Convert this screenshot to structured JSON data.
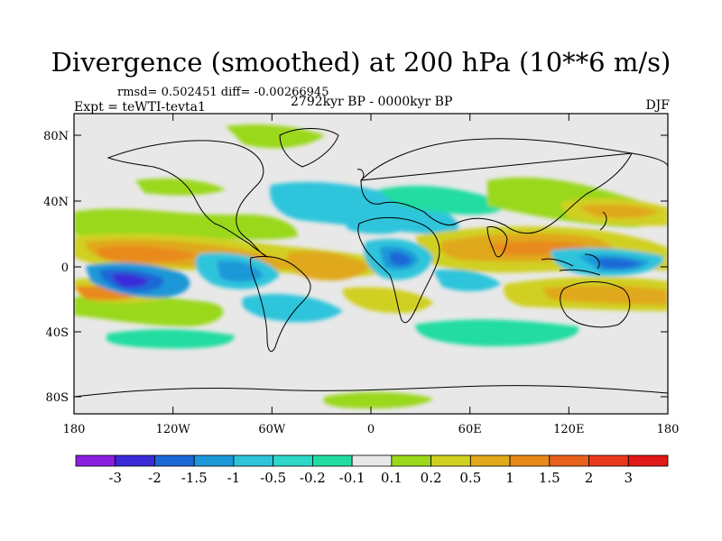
{
  "title": "Divergence (smoothed) at 200 hPa (10**6 m/s)",
  "stats": {
    "rmsd_label": "rmsd=",
    "rmsd_value": "0.502451",
    "diff_label": "diff=",
    "diff_value": "-0.00266945"
  },
  "experiment": "Expt = teWTI-tevta1",
  "period": "2792kyr BP - 0000kyr BP",
  "season": "DJF",
  "axes": {
    "y_ticks": [
      "80N",
      "40N",
      "0",
      "40S",
      "80S"
    ],
    "x_ticks": [
      "180",
      "120W",
      "60W",
      "0",
      "60E",
      "120E",
      "180"
    ]
  },
  "colorbar": {
    "labels": [
      "-3",
      "-2",
      "-1.5",
      "-1",
      "-0.5",
      "-0.2",
      "-0.1",
      "0.1",
      "0.2",
      "0.5",
      "1",
      "1.5",
      "2",
      "3"
    ],
    "colors": [
      "#8a1fe0",
      "#3a2ad8",
      "#1a68d6",
      "#1b98d8",
      "#2ec4dc",
      "#2dd8c8",
      "#20dca0",
      "#e8e8e8",
      "#9ad81a",
      "#d0d020",
      "#e0a81a",
      "#e88a1a",
      "#e8601a",
      "#e83a1a",
      "#e01818"
    ]
  },
  "colors": {
    "land_ocean_background": "#e8e8e8",
    "coastline": "#000000"
  }
}
